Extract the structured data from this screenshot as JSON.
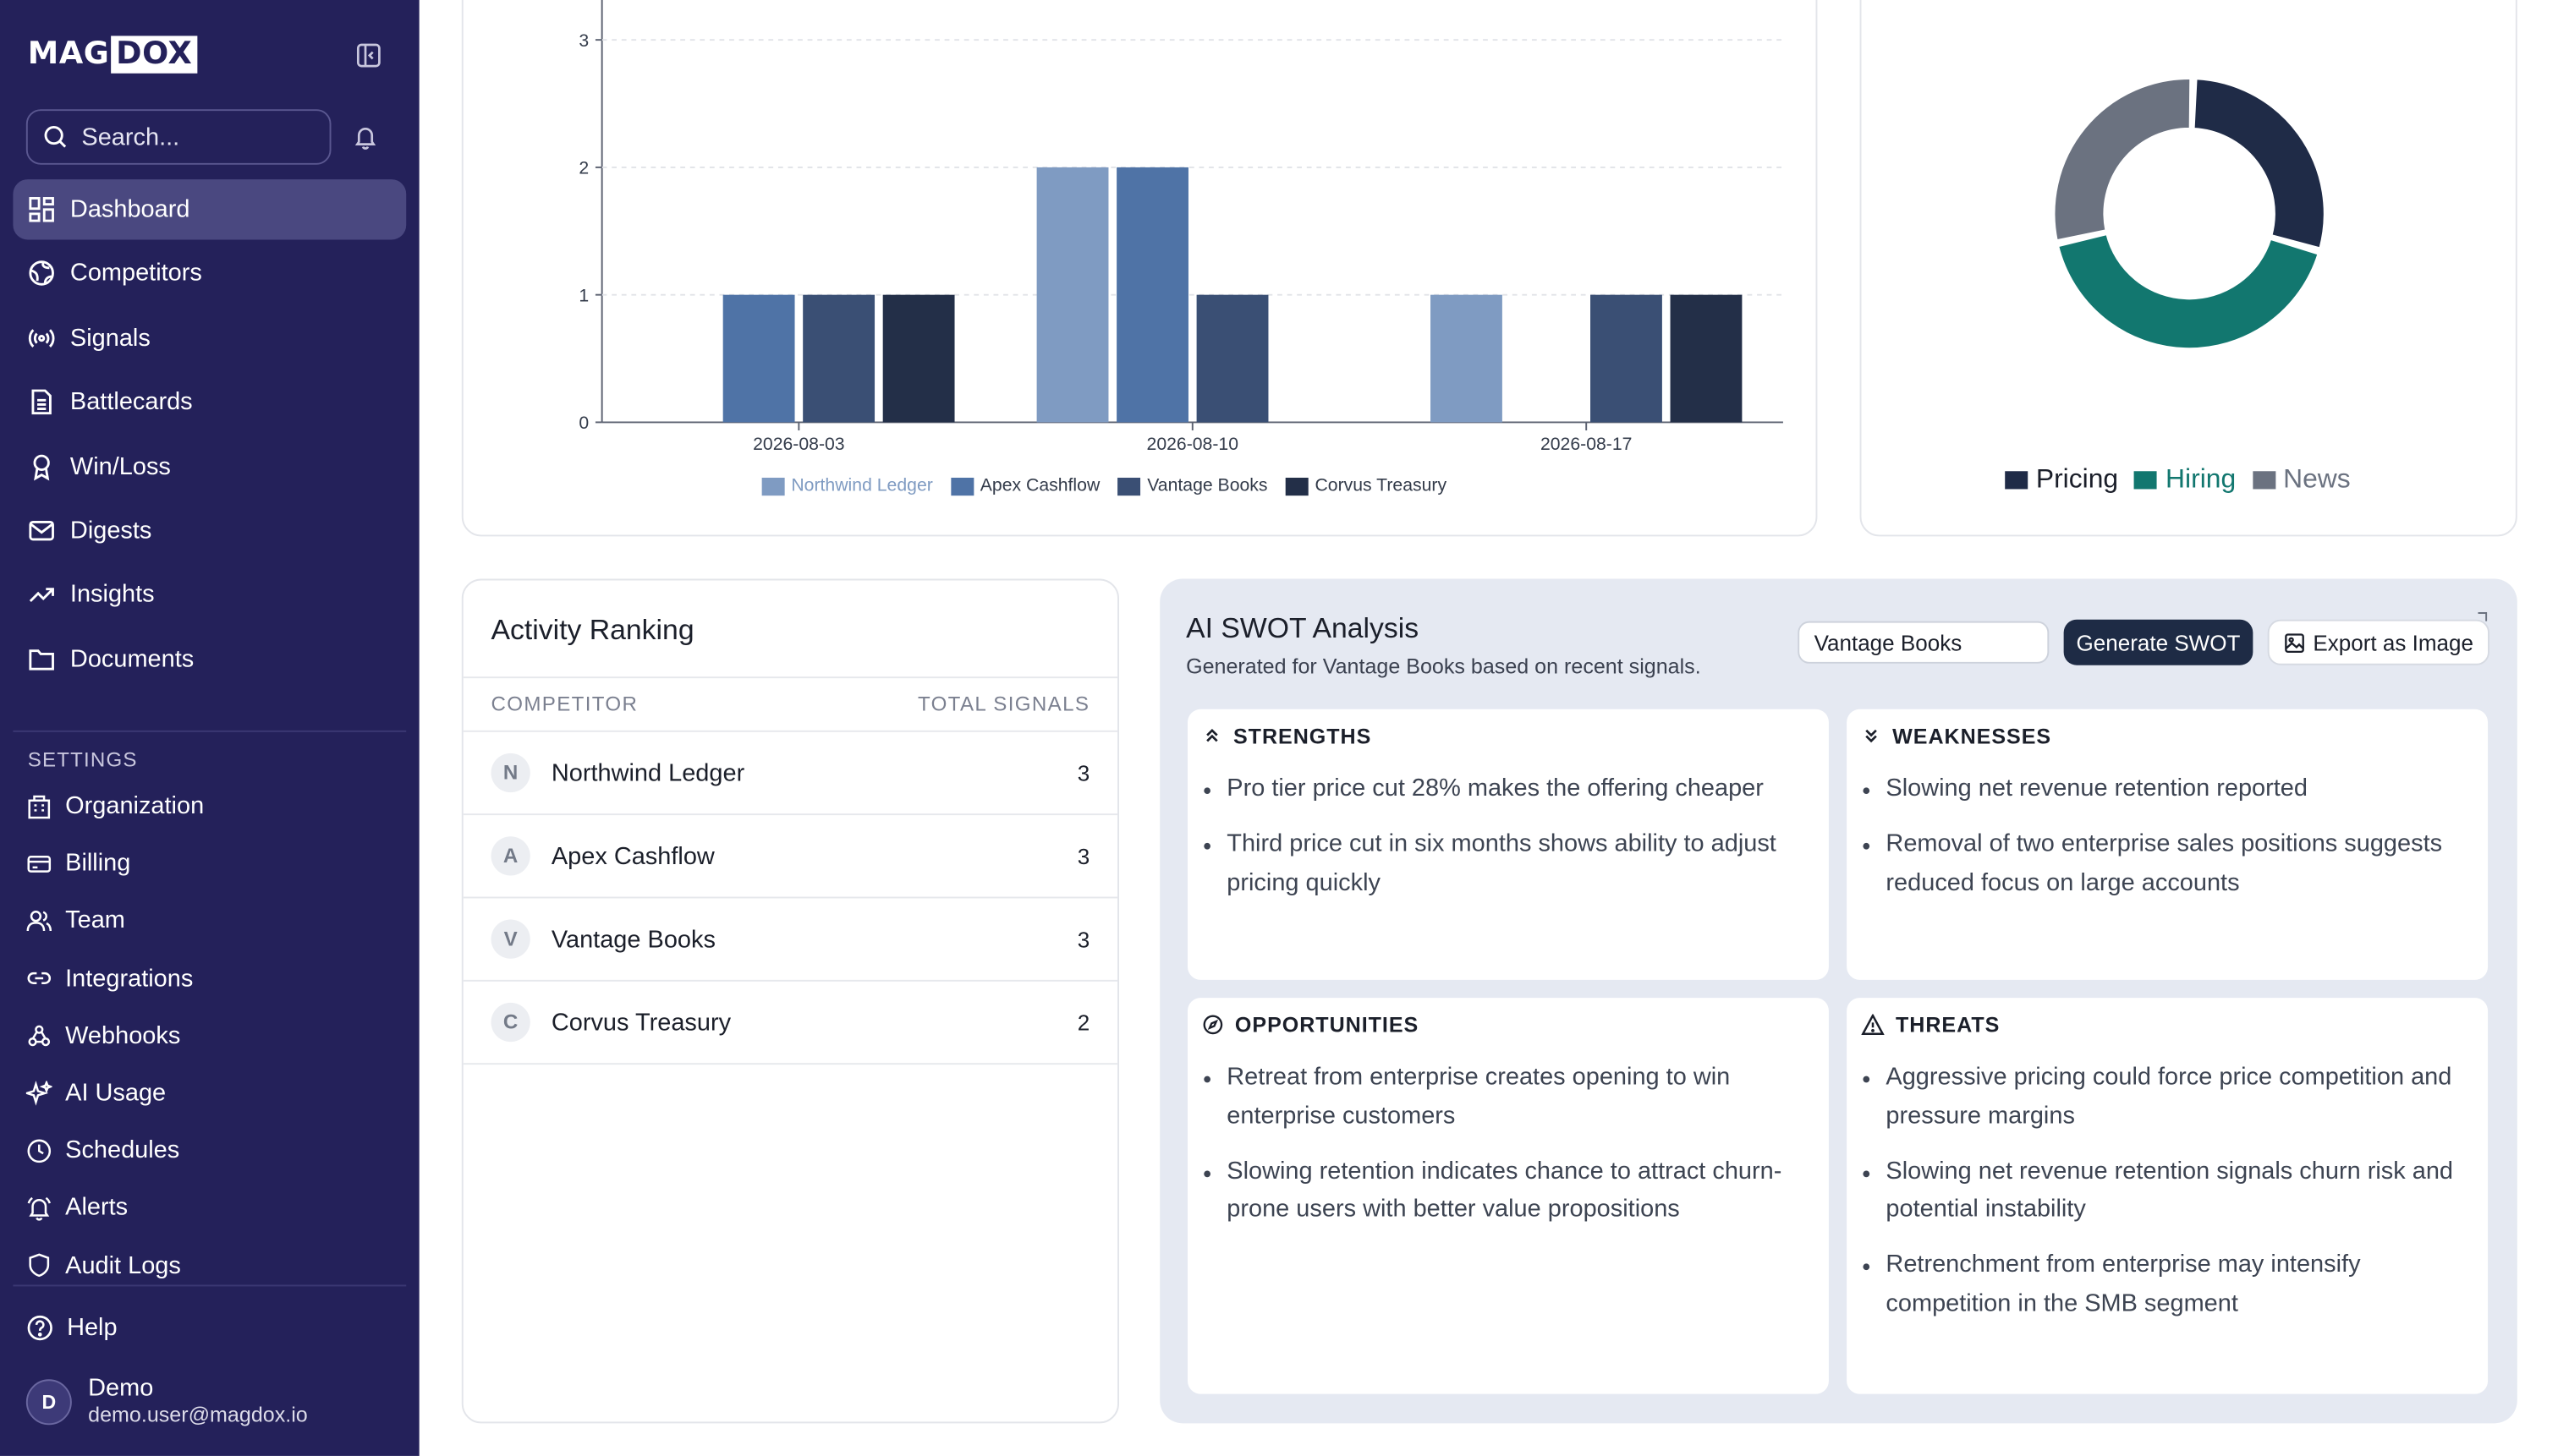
{
  "brand": {
    "prefix": "MAG",
    "boxed": "DOX"
  },
  "search": {
    "placeholder": "Search..."
  },
  "nav": [
    {
      "label": "Dashboard",
      "icon": "dashboard-icon",
      "active": true
    },
    {
      "label": "Competitors",
      "icon": "globe-icon"
    },
    {
      "label": "Signals",
      "icon": "broadcast-icon"
    },
    {
      "label": "Battlecards",
      "icon": "document-icon"
    },
    {
      "label": "Win/Loss",
      "icon": "ribbon-icon"
    },
    {
      "label": "Digests",
      "icon": "mail-icon"
    },
    {
      "label": "Insights",
      "icon": "trending-up-icon"
    },
    {
      "label": "Documents",
      "icon": "folder-icon"
    }
  ],
  "settings": {
    "label": "SETTINGS",
    "items": [
      {
        "label": "Organization",
        "icon": "building-icon"
      },
      {
        "label": "Billing",
        "icon": "credit-card-icon"
      },
      {
        "label": "Team",
        "icon": "users-icon"
      },
      {
        "label": "Integrations",
        "icon": "link-icon"
      },
      {
        "label": "Webhooks",
        "icon": "webhook-icon"
      },
      {
        "label": "AI Usage",
        "icon": "sparkles-icon"
      },
      {
        "label": "Schedules",
        "icon": "clock-icon"
      },
      {
        "label": "Alerts",
        "icon": "bell-ring-icon"
      },
      {
        "label": "Audit Logs",
        "icon": "shield-icon"
      }
    ]
  },
  "help": {
    "label": "Help"
  },
  "user": {
    "initial": "D",
    "name": "Demo",
    "email": "demo.user@magdox.io"
  },
  "chart_data": [
    {
      "type": "bar",
      "categories": [
        "2026-08-03",
        "2026-08-10",
        "2026-08-17"
      ],
      "ylim": [
        0,
        3.3
      ],
      "yticks": [
        0,
        1,
        2,
        3
      ],
      "grid": true,
      "legend": "bottom",
      "series": [
        {
          "name": "Northwind Ledger",
          "color": "#7f9bc2",
          "values": [
            0,
            2,
            1
          ]
        },
        {
          "name": "Apex Cashflow",
          "color": "#4f73a6",
          "values": [
            1,
            2,
            0
          ]
        },
        {
          "name": "Vantage Books",
          "color": "#3a4f74",
          "values": [
            1,
            1,
            1
          ]
        },
        {
          "name": "Corvus Treasury",
          "color": "#232f48",
          "values": [
            1,
            0,
            1
          ]
        }
      ]
    },
    {
      "type": "pie",
      "legend": "bottom",
      "series": [
        {
          "name": "Pricing",
          "color": "#1f2b47",
          "value": 29
        },
        {
          "name": "Hiring",
          "color": "#12776f",
          "value": 42
        },
        {
          "name": "News",
          "color": "#6b7280",
          "value": 29
        }
      ]
    }
  ],
  "ranking": {
    "title": "Activity Ranking",
    "col_competitor": "COMPETITOR",
    "col_signals": "TOTAL SIGNALS",
    "rows": [
      {
        "initial": "N",
        "name": "Northwind Ledger",
        "count": "3"
      },
      {
        "initial": "A",
        "name": "Apex Cashflow",
        "count": "3"
      },
      {
        "initial": "V",
        "name": "Vantage Books",
        "count": "3"
      },
      {
        "initial": "C",
        "name": "Corvus Treasury",
        "count": "2"
      }
    ]
  },
  "swot": {
    "title": "AI SWOT Analysis",
    "subtitle": "Generated for Vantage Books based on recent signals.",
    "selected_competitor": "Vantage Books",
    "generate_label": "Generate SWOT",
    "export_label": "Export as Image",
    "strengths": {
      "label": "STRENGTHS",
      "items": [
        "Pro tier price cut 28% makes the offering cheaper",
        "Third price cut in six months shows ability to adjust pricing quickly"
      ]
    },
    "weaknesses": {
      "label": "WEAKNESSES",
      "items": [
        "Slowing net revenue retention reported",
        "Removal of two enterprise sales positions suggests reduced focus on large accounts"
      ]
    },
    "opportunities": {
      "label": "OPPORTUNITIES",
      "items": [
        "Retreat from enterprise creates opening to win enterprise customers",
        "Slowing retention indicates chance to attract churn-prone users with better value propositions"
      ]
    },
    "threats": {
      "label": "THREATS",
      "items": [
        "Aggressive pricing could force price competition and pressure margins",
        "Slowing net revenue retention signals churn risk and potential instability",
        "Retrenchment from enterprise may intensify competition in the SMB segment"
      ]
    }
  }
}
